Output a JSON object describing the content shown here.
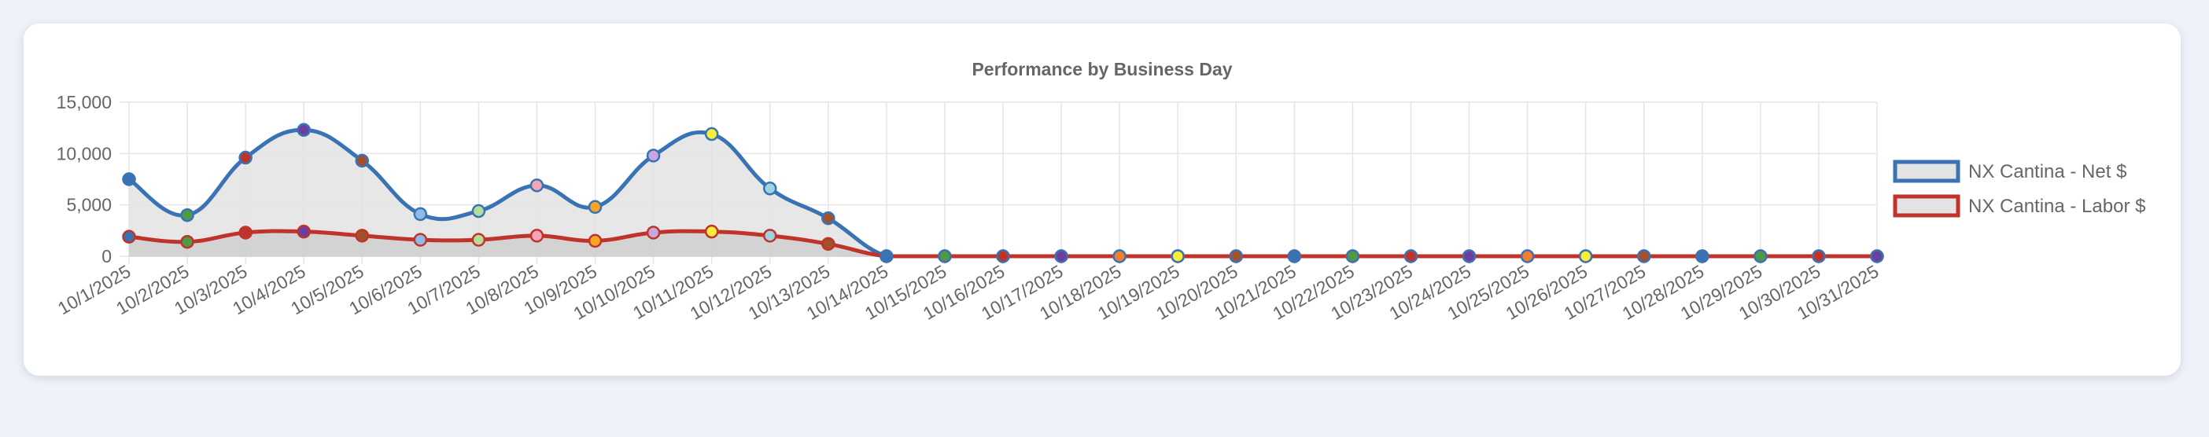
{
  "chart_data": {
    "type": "line",
    "title": "Performance by Business Day",
    "xlabel": "",
    "ylabel": "",
    "ylim": [
      0,
      15000
    ],
    "yticks": [
      0,
      5000,
      10000,
      15000
    ],
    "ytick_labels": [
      "0",
      "5,000",
      "10,000",
      "15,000"
    ],
    "grid": true,
    "legend_position": "right",
    "categories": [
      "10/1/2025",
      "10/2/2025",
      "10/3/2025",
      "10/4/2025",
      "10/5/2025",
      "10/6/2025",
      "10/7/2025",
      "10/8/2025",
      "10/9/2025",
      "10/10/2025",
      "10/11/2025",
      "10/12/2025",
      "10/13/2025",
      "10/14/2025",
      "10/15/2025",
      "10/16/2025",
      "10/17/2025",
      "10/18/2025",
      "10/19/2025",
      "10/20/2025",
      "10/21/2025",
      "10/22/2025",
      "10/23/2025",
      "10/24/2025",
      "10/25/2025",
      "10/26/2025",
      "10/27/2025",
      "10/28/2025",
      "10/29/2025",
      "10/30/2025",
      "10/31/2025"
    ],
    "series": [
      {
        "name": "NX Cantina - Net $",
        "color": "#3a73b4",
        "fill": "#e3e3e3",
        "values": [
          7500,
          4000,
          9600,
          12300,
          9300,
          4100,
          4400,
          6900,
          4800,
          9800,
          11900,
          6600,
          3700,
          0,
          0,
          0,
          0,
          0,
          0,
          0,
          0,
          0,
          0,
          0,
          0,
          0,
          0,
          0,
          0,
          0,
          0
        ]
      },
      {
        "name": "NX Cantina - Labor $",
        "color": "#c0332b",
        "fill": "#cfcfcf",
        "values": [
          1900,
          1400,
          2300,
          2400,
          2000,
          1600,
          1600,
          2000,
          1500,
          2300,
          2400,
          2000,
          1200,
          0,
          0,
          0,
          0,
          0,
          0,
          0,
          0,
          0,
          0,
          0,
          0,
          0,
          0,
          0,
          0,
          0,
          0
        ]
      }
    ],
    "point_colors": [
      "#3a73b4",
      "#4e9a45",
      "#c0332b",
      "#6b3fa0",
      "#a0522d",
      "#8fbce6",
      "#b5de9a",
      "#f3a6b5",
      "#f5a623",
      "#c9a6e0",
      "#f7ee3c",
      "#9fd3de",
      "#a0522d",
      "#3a73b4",
      "#4e9a45",
      "#c0332b",
      "#6b3fa0",
      "#f08030",
      "#f7ee3c",
      "#a0522d",
      "#3a73b4",
      "#4e9a45",
      "#c0332b",
      "#6b3fa0",
      "#f08030",
      "#f7ee3c",
      "#a0522d",
      "#3a73b4",
      "#4e9a45",
      "#c0332b",
      "#6b3fa0"
    ]
  }
}
